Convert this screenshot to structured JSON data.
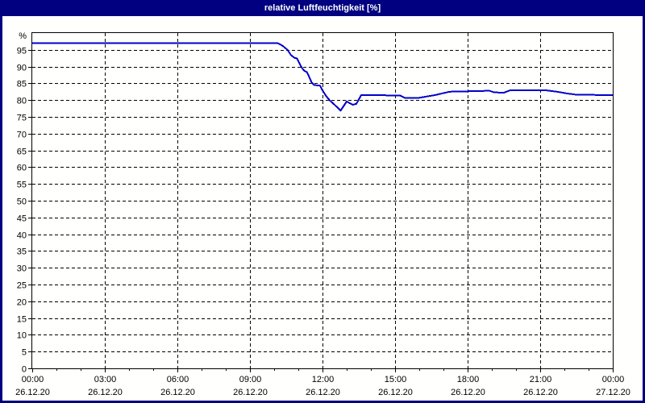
{
  "window": {
    "title": "relative Luftfeuchtigkeit [%]"
  },
  "colors": {
    "titlebar_bg": "#000080",
    "titlebar_text": "#ffffff",
    "window_border": "#000080",
    "plot_bg": "#fffffe",
    "frame": "#000000",
    "grid": "#000000",
    "axis_text": "#000000",
    "line": "#0000c8"
  },
  "chart_data": {
    "type": "line",
    "title": "relative Luftfeuchtigkeit [%]",
    "ylabel": "%",
    "xlabel": "",
    "ylim": [
      0,
      100
    ],
    "xlim_hours": [
      0,
      24
    ],
    "grid": "dashed",
    "legend_position": "none",
    "yticks": [
      0,
      5,
      10,
      15,
      20,
      25,
      30,
      35,
      40,
      45,
      50,
      55,
      60,
      65,
      70,
      75,
      80,
      85,
      90,
      95
    ],
    "y_unit_label": "%",
    "minor_tick_hours": 1,
    "xticks": [
      {
        "hour": 0,
        "time": "00:00",
        "date": "26.12.20"
      },
      {
        "hour": 3,
        "time": "03:00",
        "date": "26.12.20"
      },
      {
        "hour": 6,
        "time": "06:00",
        "date": "26.12.20"
      },
      {
        "hour": 9,
        "time": "09:00",
        "date": "26.12.20"
      },
      {
        "hour": 12,
        "time": "12:00",
        "date": "26.12.20"
      },
      {
        "hour": 15,
        "time": "15:00",
        "date": "26.12.20"
      },
      {
        "hour": 18,
        "time": "18:00",
        "date": "26.12.20"
      },
      {
        "hour": 21,
        "time": "21:00",
        "date": "26.12.20"
      },
      {
        "hour": 24,
        "time": "00:00",
        "date": "27.12.20"
      }
    ],
    "series": [
      {
        "name": "relative Luftfeuchtigkeit",
        "unit": "%",
        "color": "#0000c8",
        "points": [
          [
            0.0,
            97.0
          ],
          [
            10.15,
            97.0
          ],
          [
            10.35,
            96.2
          ],
          [
            10.55,
            95.0
          ],
          [
            10.7,
            93.4
          ],
          [
            10.85,
            92.6
          ],
          [
            10.95,
            92.4
          ],
          [
            11.05,
            90.9
          ],
          [
            11.15,
            89.6
          ],
          [
            11.25,
            88.7
          ],
          [
            11.35,
            88.4
          ],
          [
            11.45,
            86.9
          ],
          [
            11.55,
            85.3
          ],
          [
            11.65,
            84.5
          ],
          [
            11.9,
            84.3
          ],
          [
            12.0,
            82.9
          ],
          [
            12.15,
            81.2
          ],
          [
            12.3,
            79.9
          ],
          [
            12.5,
            78.6
          ],
          [
            12.75,
            76.9
          ],
          [
            13.0,
            79.6
          ],
          [
            13.25,
            78.6
          ],
          [
            13.4,
            78.9
          ],
          [
            13.6,
            81.5
          ],
          [
            15.2,
            81.4
          ],
          [
            15.4,
            80.7
          ],
          [
            16.0,
            80.7
          ],
          [
            16.65,
            81.5
          ],
          [
            17.25,
            82.5
          ],
          [
            18.9,
            82.8
          ],
          [
            19.1,
            82.3
          ],
          [
            19.5,
            82.2
          ],
          [
            19.75,
            82.9
          ],
          [
            21.25,
            82.9
          ],
          [
            21.7,
            82.5
          ],
          [
            22.1,
            82.0
          ],
          [
            22.5,
            81.6
          ],
          [
            24.0,
            81.5
          ]
        ]
      }
    ]
  }
}
